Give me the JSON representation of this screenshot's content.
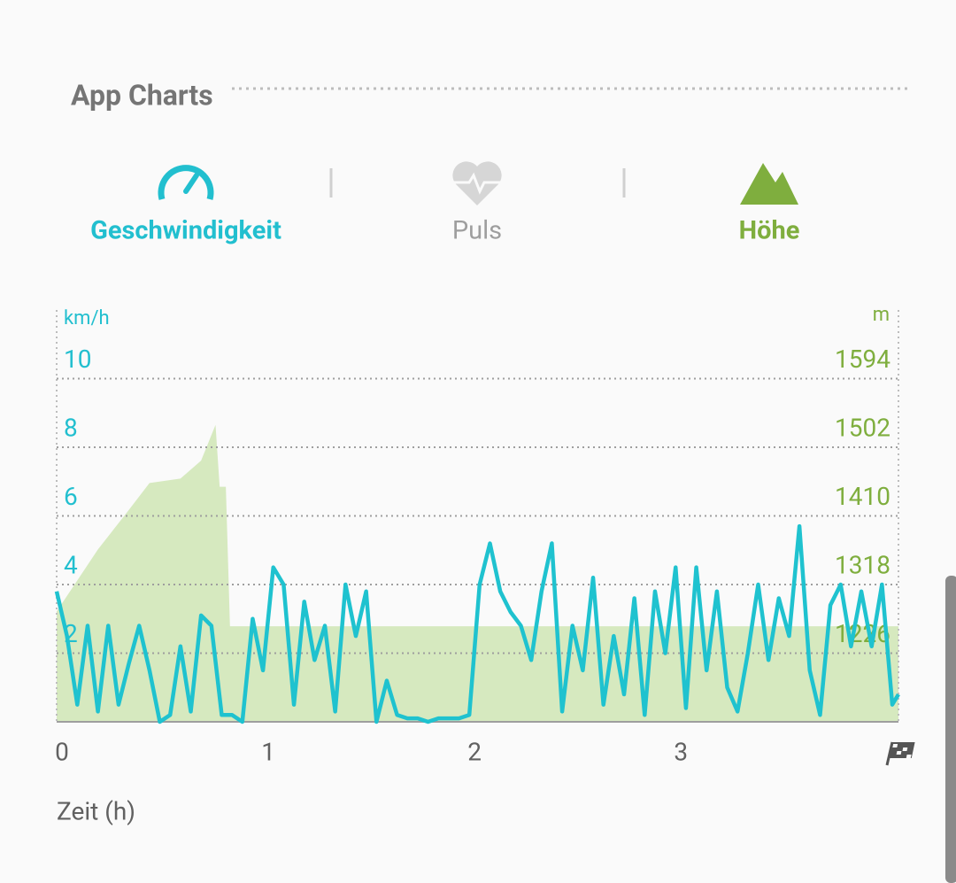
{
  "header": {
    "title": "App Charts"
  },
  "tabs": [
    {
      "label": "Geschwindigkeit",
      "color": "#22bfcf"
    },
    {
      "label": "Puls",
      "color": "#9e9e9e"
    },
    {
      "label": "Höhe",
      "color": "#7fae3e"
    }
  ],
  "chart_data": {
    "type": "line",
    "y_unit": "km/h",
    "y2_unit": "m",
    "xlabel": "Zeit (h)",
    "xlim": [
      0,
      4.08
    ],
    "xticks": [
      0,
      1,
      2,
      3
    ],
    "ylim": [
      0,
      12
    ],
    "yticks": [
      2,
      4,
      6,
      8,
      10
    ],
    "y2lim": [
      1134,
      1686
    ],
    "y2ticks": [
      1226,
      1318,
      1410,
      1502,
      1594
    ],
    "grid": true,
    "series": [
      {
        "color": "#cfe5b4",
        "axis": "y2",
        "style": "area",
        "x": [
          0,
          0.2,
          0.35,
          0.45,
          0.6,
          0.7,
          0.77,
          0.79,
          0.82,
          0.84,
          4.08
        ],
        "values": [
          1282,
          1365,
          1418,
          1454,
          1460,
          1484,
          1532,
          1449,
          1449,
          1262,
          1262
        ]
      },
      {
        "color": "#1fc2cf",
        "style": "line",
        "x": [
          0,
          0.05,
          0.1,
          0.15,
          0.2,
          0.25,
          0.3,
          0.35,
          0.4,
          0.45,
          0.5,
          0.55,
          0.6,
          0.65,
          0.7,
          0.75,
          0.8,
          0.85,
          0.9,
          0.95,
          1.0,
          1.05,
          1.1,
          1.15,
          1.2,
          1.25,
          1.3,
          1.35,
          1.4,
          1.45,
          1.5,
          1.55,
          1.6,
          1.65,
          1.7,
          1.75,
          1.8,
          1.85,
          1.9,
          1.95,
          2.0,
          2.05,
          2.1,
          2.15,
          2.2,
          2.25,
          2.3,
          2.35,
          2.4,
          2.45,
          2.5,
          2.55,
          2.6,
          2.65,
          2.7,
          2.75,
          2.8,
          2.85,
          2.9,
          2.95,
          3.0,
          3.05,
          3.1,
          3.15,
          3.2,
          3.25,
          3.3,
          3.35,
          3.4,
          3.45,
          3.5,
          3.55,
          3.6,
          3.65,
          3.7,
          3.75,
          3.8,
          3.85,
          3.9,
          3.95,
          4.0,
          4.05,
          4.08
        ],
        "values": [
          3.8,
          2.5,
          0.5,
          2.8,
          0.3,
          2.8,
          0.5,
          1.7,
          2.8,
          1.5,
          0,
          0.2,
          2.2,
          0.3,
          3.1,
          2.8,
          0.2,
          0.2,
          0,
          3,
          1.5,
          4.5,
          4,
          0.5,
          3.5,
          1.8,
          2.8,
          0.3,
          4,
          2.5,
          3.8,
          0,
          1.2,
          0.2,
          0.1,
          0.1,
          0,
          0.1,
          0.1,
          0.1,
          0.2,
          4,
          5.2,
          3.8,
          3.2,
          2.8,
          1.8,
          3.8,
          5.2,
          0.3,
          2.8,
          1.5,
          4.2,
          0.5,
          2.5,
          0.8,
          3.6,
          0.2,
          3.8,
          2,
          4.5,
          0.4,
          4.5,
          1.5,
          3.8,
          1,
          0.3,
          2,
          4,
          1.8,
          3.6,
          2.5,
          5.7,
          1.5,
          0.2,
          3.4,
          4,
          2.2,
          3.8,
          2.2,
          4,
          0.5,
          0.8
        ]
      }
    ]
  }
}
